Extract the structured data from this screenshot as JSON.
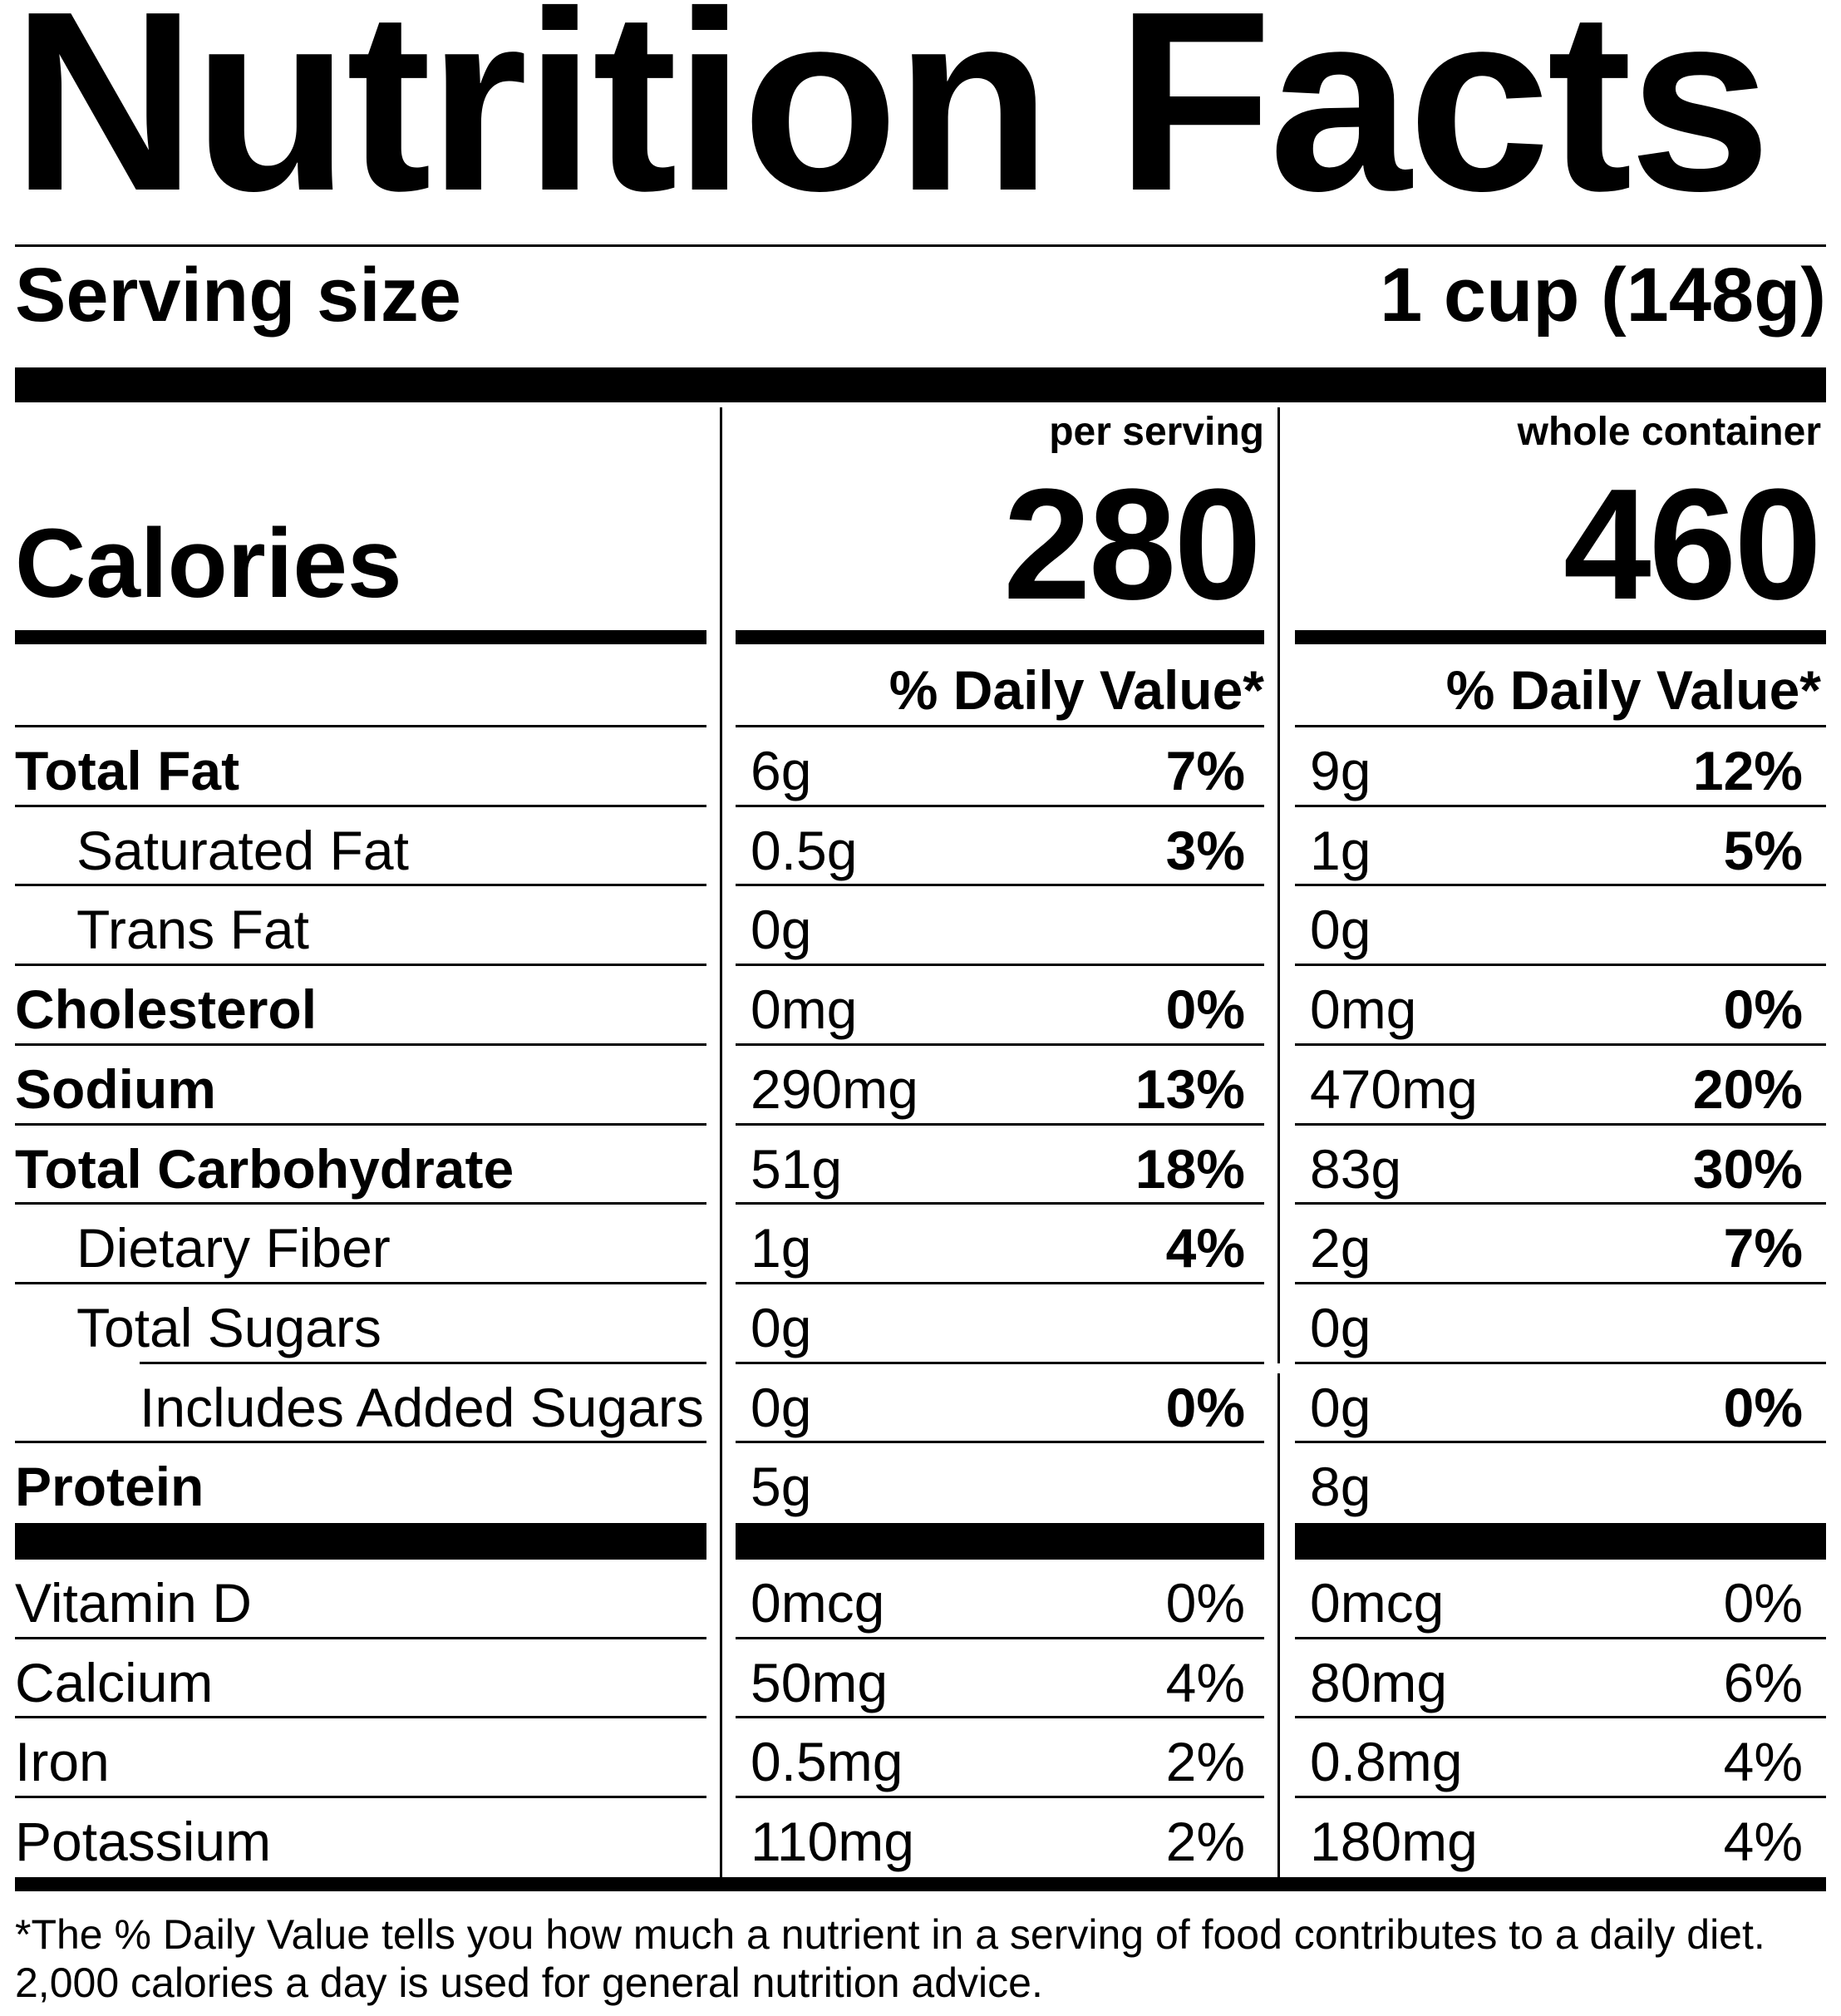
{
  "title": "Nutrition Facts",
  "serving": {
    "label": "Serving size",
    "value": "1 cup (148g)"
  },
  "calories": {
    "label": "Calories",
    "per_serving_header": "per serving",
    "per_serving_value": "280",
    "whole_container_header": "whole container",
    "whole_container_value": "460"
  },
  "daily_value_header": "% Daily Value*",
  "nutrients": [
    {
      "name": "Total Fat",
      "bold": true,
      "indent": 0,
      "serving_amount": "6g",
      "serving_dv": "7%",
      "container_amount": "9g",
      "container_dv": "12%"
    },
    {
      "name": "Saturated Fat",
      "bold": false,
      "indent": 1,
      "serving_amount": "0.5g",
      "serving_dv": "3%",
      "container_amount": "1g",
      "container_dv": "5%"
    },
    {
      "name": "Trans Fat",
      "bold": false,
      "indent": 1,
      "serving_amount": "0g",
      "serving_dv": "",
      "container_amount": "0g",
      "container_dv": ""
    },
    {
      "name": "Cholesterol",
      "bold": true,
      "indent": 0,
      "serving_amount": "0mg",
      "serving_dv": "0%",
      "container_amount": "0mg",
      "container_dv": "0%"
    },
    {
      "name": "Sodium",
      "bold": true,
      "indent": 0,
      "serving_amount": "290mg",
      "serving_dv": "13%",
      "container_amount": "470mg",
      "container_dv": "20%"
    },
    {
      "name": "Total Carbohydrate",
      "bold": true,
      "indent": 0,
      "serving_amount": "51g",
      "serving_dv": "18%",
      "container_amount": "83g",
      "container_dv": "30%"
    },
    {
      "name": "Dietary Fiber",
      "bold": false,
      "indent": 1,
      "serving_amount": "1g",
      "serving_dv": "4%",
      "container_amount": "2g",
      "container_dv": "7%"
    },
    {
      "name": "Total Sugars",
      "bold": false,
      "indent": 1,
      "serving_amount": "0g",
      "serving_dv": "",
      "container_amount": "0g",
      "container_dv": ""
    },
    {
      "name": "Includes Added Sugars",
      "bold": false,
      "indent": 2,
      "serving_amount": "0g",
      "serving_dv": "0%",
      "container_amount": "0g",
      "container_dv": "0%"
    },
    {
      "name": "Protein",
      "bold": true,
      "indent": 0,
      "serving_amount": "5g",
      "serving_dv": "",
      "container_amount": "8g",
      "container_dv": ""
    }
  ],
  "vitamins": [
    {
      "name": "Vitamin D",
      "serving_amount": "0mcg",
      "serving_dv": "0%",
      "container_amount": "0mcg",
      "container_dv": "0%"
    },
    {
      "name": "Calcium",
      "serving_amount": "50mg",
      "serving_dv": "4%",
      "container_amount": "80mg",
      "container_dv": "6%"
    },
    {
      "name": "Iron",
      "serving_amount": "0.5mg",
      "serving_dv": "2%",
      "container_amount": "0.8mg",
      "container_dv": "4%"
    },
    {
      "name": "Potassium",
      "serving_amount": "110mg",
      "serving_dv": "2%",
      "container_amount": "180mg",
      "container_dv": "4%"
    }
  ],
  "footnote": {
    "line1": "*The % Daily Value tells you how much a nutrient in a serving of food contributes to a daily diet.",
    "line2": "2,000 calories a day is used for general nutrition advice."
  }
}
